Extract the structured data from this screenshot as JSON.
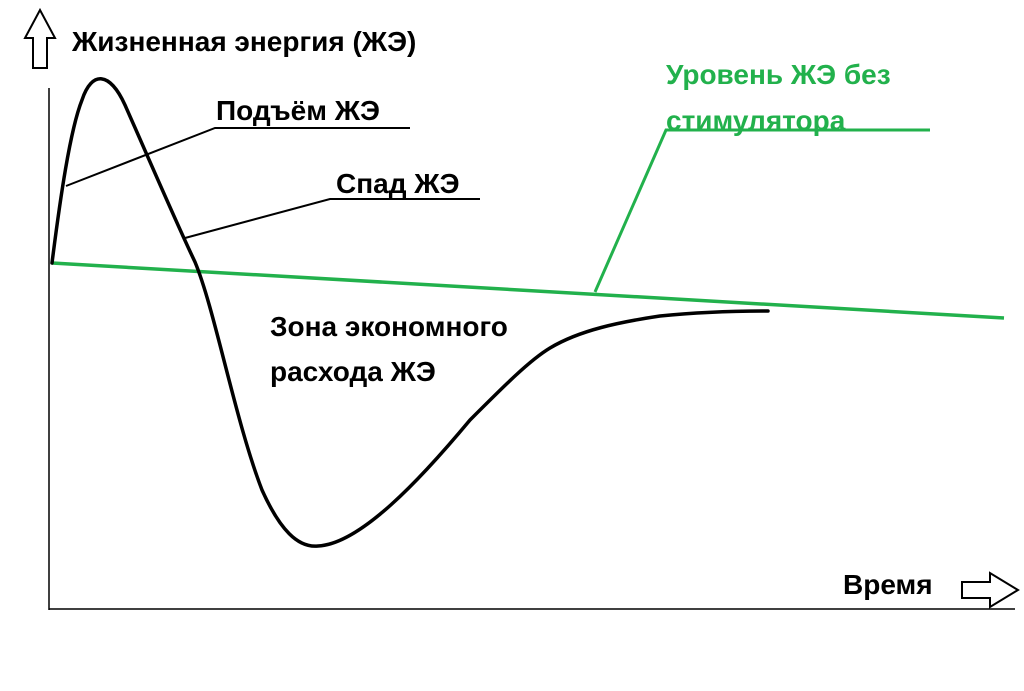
{
  "axes": {
    "y_label": "Жизненная энергия (ЖЭ)",
    "x_label": "Время"
  },
  "annotations": {
    "rise": "Подъём ЖЭ",
    "fall": "Спад ЖЭ",
    "zone_line1": "Зона экономного",
    "zone_line2": "расхода ЖЭ",
    "baseline_line1": "Уровень ЖЭ без",
    "baseline_line2": "стимулятора"
  },
  "colors": {
    "curve": "#000000",
    "baseline": "#22b14c",
    "text": "#000000",
    "baseline_text": "#22b14c"
  }
}
